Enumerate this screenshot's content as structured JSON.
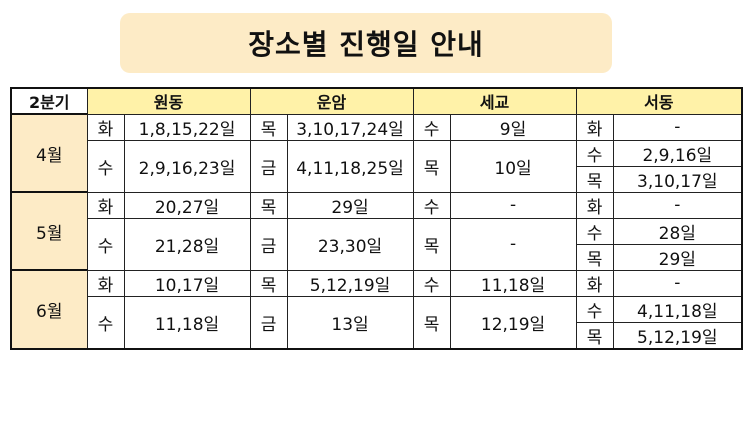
{
  "title": "장소별 진행일 안내",
  "header": {
    "quarter": "2분기",
    "locations": [
      "원동",
      "운암",
      "세교",
      "서동"
    ]
  },
  "months": [
    {
      "label": "4월",
      "rows": [
        {
          "wondong_day": "화",
          "wondong_dates": "1,8,15,22일",
          "unam_day": "목",
          "unam_dates": "3,10,17,24일",
          "segyo_day": "수",
          "segyo_dates": "9일"
        },
        {
          "wondong_day": "수",
          "wondong_dates": "2,9,16,23일",
          "unam_day": "금",
          "unam_dates": "4,11,18,25일",
          "segyo_day": "목",
          "segyo_dates": "10일"
        }
      ],
      "seodong": [
        {
          "day": "화",
          "dates": "-"
        },
        {
          "day": "수",
          "dates": "2,9,16일"
        },
        {
          "day": "목",
          "dates": "3,10,17일"
        }
      ]
    },
    {
      "label": "5월",
      "rows": [
        {
          "wondong_day": "화",
          "wondong_dates": "20,27일",
          "unam_day": "목",
          "unam_dates": "29일",
          "segyo_day": "수",
          "segyo_dates": "-"
        },
        {
          "wondong_day": "수",
          "wondong_dates": "21,28일",
          "unam_day": "금",
          "unam_dates": "23,30일",
          "segyo_day": "목",
          "segyo_dates": "-"
        }
      ],
      "seodong": [
        {
          "day": "화",
          "dates": "-"
        },
        {
          "day": "수",
          "dates": "28일"
        },
        {
          "day": "목",
          "dates": "29일"
        }
      ]
    },
    {
      "label": "6월",
      "rows": [
        {
          "wondong_day": "화",
          "wondong_dates": "10,17일",
          "unam_day": "목",
          "unam_dates": "5,12,19일",
          "segyo_day": "수",
          "segyo_dates": "11,18일"
        },
        {
          "wondong_day": "수",
          "wondong_dates": "11,18일",
          "unam_day": "금",
          "unam_dates": "13일",
          "segyo_day": "목",
          "segyo_dates": "12,19일"
        }
      ],
      "seodong": [
        {
          "day": "화",
          "dates": "-"
        },
        {
          "day": "수",
          "dates": "4,11,18일"
        },
        {
          "day": "목",
          "dates": "5,12,19일"
        }
      ]
    }
  ],
  "colors": {
    "title_bg": "#fdebc6",
    "header_bg": "#fff2a8",
    "month_bg": "#fdebc6"
  }
}
